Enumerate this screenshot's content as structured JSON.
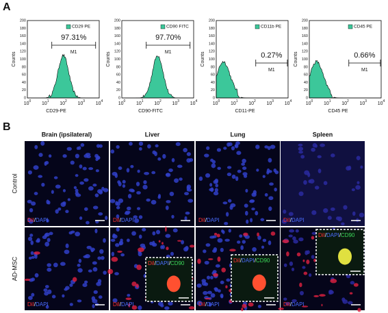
{
  "panel_a": {
    "label": "A",
    "y_axis_label": "Counts",
    "y_ticks": [
      0,
      20,
      40,
      60,
      80,
      100,
      120,
      140,
      160,
      180,
      200
    ],
    "x_ticks": [
      {
        "base": "10",
        "exponent": "0"
      },
      {
        "base": "10",
        "exponent": "1"
      },
      {
        "base": "10",
        "exponent": "2"
      },
      {
        "base": "10",
        "exponent": "3"
      },
      {
        "base": "10",
        "exponent": "4"
      }
    ],
    "gate": "M1",
    "plots": [
      {
        "legend": "CD29 PE",
        "percent": "97.31%",
        "x_axis_label": "CD29-PE"
      },
      {
        "legend": "CD90 FITC",
        "percent": "97.70%",
        "x_axis_label": "CD90-FITC"
      },
      {
        "legend": "CD11b PE",
        "percent": "0.27%",
        "x_axis_label": "CD11-PE"
      },
      {
        "legend": "CD45 PE",
        "percent": "0.66%",
        "x_axis_label": "CD45 PE"
      }
    ]
  },
  "panel_b": {
    "label": "B",
    "columns": [
      "Brain (ipsilateral)",
      "Liver",
      "Lung",
      "Spleen"
    ],
    "rows": [
      "Control",
      "AD-MSC"
    ],
    "stain": {
      "dii": "DiI",
      "sep": "/",
      "dapi": "DAPI"
    },
    "inset_stain": {
      "dii": "DiI",
      "sep": "/",
      "dapi": "DAPI",
      "cd90": "CD90"
    }
  }
}
